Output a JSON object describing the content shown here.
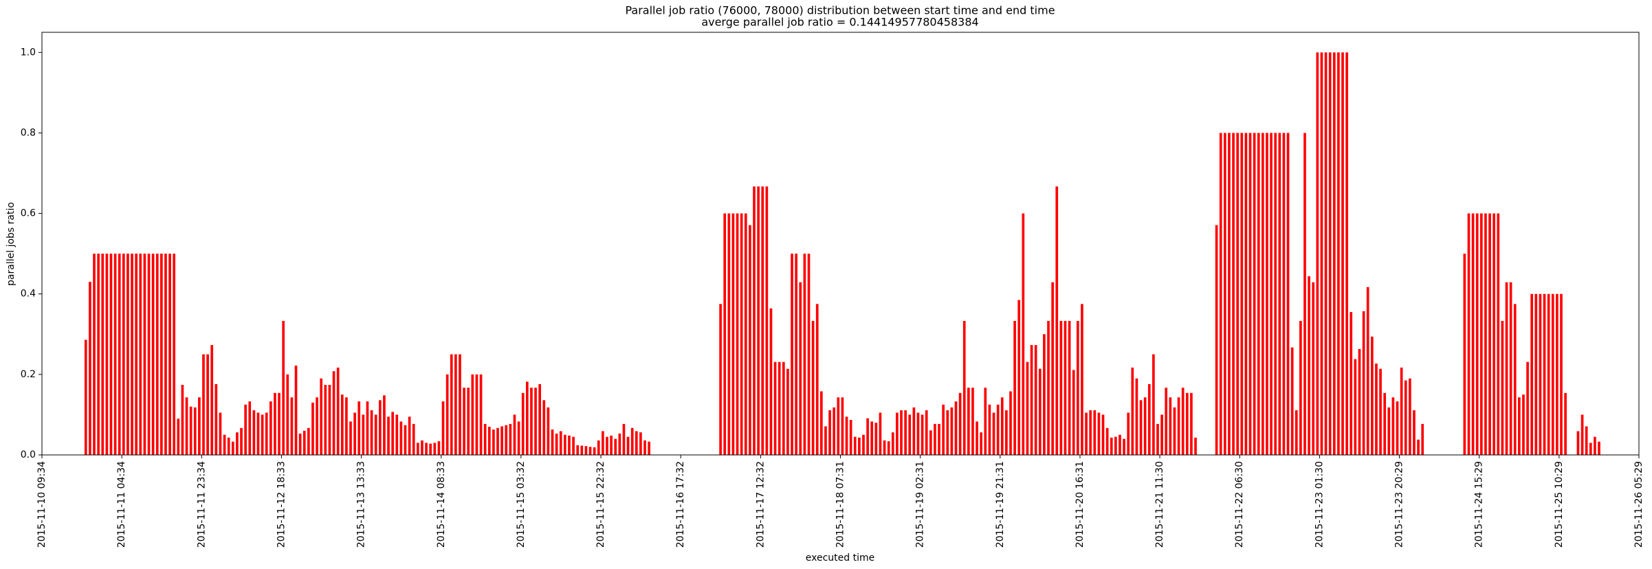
{
  "chart_data": {
    "type": "bar",
    "title": "Parallel job ratio (76000, 78000) distribution between start time and end time",
    "subtitle": "averge parallel job ratio = 0.14414957780458384",
    "x_label": "executed time",
    "y_label": "parallel jobs ratio",
    "color": "#ff0000",
    "xlim": [
      "2015-11-10 09:34",
      "2015-11-26 05:29"
    ],
    "xticks": [
      "2015-11-10 09:34",
      "2015-11-11 04:34",
      "2015-11-11 23:34",
      "2015-11-12 18:33",
      "2015-11-13 13:33",
      "2015-11-14 08:33",
      "2015-11-15 03:32",
      "2015-11-15 22:32",
      "2015-11-16 17:32",
      "2015-11-17 12:32",
      "2015-11-18 07:31",
      "2015-11-19 02:31",
      "2015-11-19 21:31",
      "2015-11-20 16:31",
      "2015-11-21 11:30",
      "2015-11-22 06:30",
      "2015-11-23 01:30",
      "2015-11-23 20:29",
      "2015-11-24 15:29",
      "2015-11-25 10:29",
      "2015-11-26 05:29"
    ],
    "ylim": [
      0,
      1.05
    ],
    "yticks": [
      {
        "value": 0,
        "label": "0.0"
      },
      0.2,
      0.4,
      0.6,
      0.8,
      {
        "value": 1,
        "label": "1.0"
      }
    ],
    "x": [
      "2015-11-10 20:00",
      "2015-11-10 21:00",
      "2015-11-10 22:00",
      "2015-11-10 23:00",
      "2015-11-11 00:00",
      "2015-11-11 01:00",
      "2015-11-11 02:00",
      "2015-11-11 03:00",
      "2015-11-11 04:00",
      "2015-11-11 05:00",
      "2015-11-11 06:00",
      "2015-11-11 07:00",
      "2015-11-11 08:00",
      "2015-11-11 09:00",
      "2015-11-11 10:00",
      "2015-11-11 11:00",
      "2015-11-11 12:00",
      "2015-11-11 13:00",
      "2015-11-11 14:00",
      "2015-11-11 15:00",
      "2015-11-11 16:00",
      "2015-11-11 17:00",
      "2015-11-11 18:00",
      "2015-11-11 19:00",
      "2015-11-11 20:00",
      "2015-11-11 21:00",
      "2015-11-11 22:00",
      "2015-11-11 23:00",
      "2015-11-12 00:00",
      "2015-11-12 01:00",
      "2015-11-12 02:00",
      "2015-11-12 03:00",
      "2015-11-12 04:00",
      "2015-11-12 05:00",
      "2015-11-12 06:00",
      "2015-11-12 07:00",
      "2015-11-12 08:00",
      "2015-11-12 09:00",
      "2015-11-12 10:00",
      "2015-11-12 11:00",
      "2015-11-12 12:00",
      "2015-11-12 13:00",
      "2015-11-12 14:00",
      "2015-11-12 15:00",
      "2015-11-12 16:00",
      "2015-11-12 17:00",
      "2015-11-12 18:00",
      "2015-11-12 19:00",
      "2015-11-12 20:00",
      "2015-11-12 21:00",
      "2015-11-12 22:00",
      "2015-11-12 23:00",
      "2015-11-13 00:00",
      "2015-11-13 01:00",
      "2015-11-13 02:00",
      "2015-11-13 03:00",
      "2015-11-13 04:00",
      "2015-11-13 05:00",
      "2015-11-13 06:00",
      "2015-11-13 07:00",
      "2015-11-13 08:00",
      "2015-11-13 09:00",
      "2015-11-13 10:00",
      "2015-11-13 11:00",
      "2015-11-13 12:00",
      "2015-11-13 13:00",
      "2015-11-13 14:00",
      "2015-11-13 15:00",
      "2015-11-13 16:00",
      "2015-11-13 17:00",
      "2015-11-13 18:00",
      "2015-11-13 19:00",
      "2015-11-13 20:00",
      "2015-11-13 21:00",
      "2015-11-13 22:00",
      "2015-11-13 23:00",
      "2015-11-14 00:00",
      "2015-11-14 01:00",
      "2015-11-14 02:00",
      "2015-11-14 03:00",
      "2015-11-14 04:00",
      "2015-11-14 05:00",
      "2015-11-14 06:00",
      "2015-11-14 07:00",
      "2015-11-14 08:00",
      "2015-11-14 09:00",
      "2015-11-14 10:00",
      "2015-11-14 11:00",
      "2015-11-14 12:00",
      "2015-11-14 13:00",
      "2015-11-14 14:00",
      "2015-11-14 15:00",
      "2015-11-14 16:00",
      "2015-11-14 17:00",
      "2015-11-14 18:00",
      "2015-11-14 19:00",
      "2015-11-14 20:00",
      "2015-11-14 21:00",
      "2015-11-14 22:00",
      "2015-11-14 23:00",
      "2015-11-15 00:00",
      "2015-11-15 01:00",
      "2015-11-15 02:00",
      "2015-11-15 03:00",
      "2015-11-15 04:00",
      "2015-11-15 05:00",
      "2015-11-15 06:00",
      "2015-11-15 07:00",
      "2015-11-15 08:00",
      "2015-11-15 09:00",
      "2015-11-15 10:00",
      "2015-11-15 11:00",
      "2015-11-15 12:00",
      "2015-11-15 13:00",
      "2015-11-15 14:00",
      "2015-11-15 15:00",
      "2015-11-15 16:00",
      "2015-11-15 17:00",
      "2015-11-15 18:00",
      "2015-11-15 19:00",
      "2015-11-15 20:00",
      "2015-11-15 21:00",
      "2015-11-15 22:00",
      "2015-11-15 23:00",
      "2015-11-16 00:00",
      "2015-11-16 01:00",
      "2015-11-16 02:00",
      "2015-11-16 03:00",
      "2015-11-16 04:00",
      "2015-11-16 05:00",
      "2015-11-16 06:00",
      "2015-11-16 07:00",
      "2015-11-16 08:00",
      "2015-11-16 09:00",
      "2015-11-16 10:00",
      "2015-11-17 03:00",
      "2015-11-17 04:00",
      "2015-11-17 05:00",
      "2015-11-17 06:00",
      "2015-11-17 07:00",
      "2015-11-17 08:00",
      "2015-11-17 09:00",
      "2015-11-17 10:00",
      "2015-11-17 11:00",
      "2015-11-17 12:00",
      "2015-11-17 13:00",
      "2015-11-17 14:00",
      "2015-11-17 15:00",
      "2015-11-17 16:00",
      "2015-11-17 17:00",
      "2015-11-17 18:00",
      "2015-11-17 19:00",
      "2015-11-17 20:00",
      "2015-11-17 21:00",
      "2015-11-17 22:00",
      "2015-11-17 23:00",
      "2015-11-18 00:00",
      "2015-11-18 01:00",
      "2015-11-18 02:00",
      "2015-11-18 03:00",
      "2015-11-18 04:00",
      "2015-11-18 05:00",
      "2015-11-18 06:00",
      "2015-11-18 07:00",
      "2015-11-18 08:00",
      "2015-11-18 09:00",
      "2015-11-18 10:00",
      "2015-11-18 11:00",
      "2015-11-18 12:00",
      "2015-11-18 13:00",
      "2015-11-18 14:00",
      "2015-11-18 15:00",
      "2015-11-18 16:00",
      "2015-11-18 17:00",
      "2015-11-18 18:00",
      "2015-11-18 19:00",
      "2015-11-18 20:00",
      "2015-11-18 21:00",
      "2015-11-18 22:00",
      "2015-11-18 23:00",
      "2015-11-19 00:00",
      "2015-11-19 01:00",
      "2015-11-19 02:00",
      "2015-11-19 03:00",
      "2015-11-19 04:00",
      "2015-11-19 05:00",
      "2015-11-19 06:00",
      "2015-11-19 07:00",
      "2015-11-19 08:00",
      "2015-11-19 09:00",
      "2015-11-19 10:00",
      "2015-11-19 11:00",
      "2015-11-19 12:00",
      "2015-11-19 13:00",
      "2015-11-19 14:00",
      "2015-11-19 15:00",
      "2015-11-19 16:00",
      "2015-11-19 17:00",
      "2015-11-19 18:00",
      "2015-11-19 19:00",
      "2015-11-19 20:00",
      "2015-11-19 21:00",
      "2015-11-19 22:00",
      "2015-11-19 23:00",
      "2015-11-20 00:00",
      "2015-11-20 01:00",
      "2015-11-20 02:00",
      "2015-11-20 03:00",
      "2015-11-20 04:00",
      "2015-11-20 05:00",
      "2015-11-20 06:00",
      "2015-11-20 07:00",
      "2015-11-20 08:00",
      "2015-11-20 09:00",
      "2015-11-20 10:00",
      "2015-11-20 11:00",
      "2015-11-20 12:00",
      "2015-11-20 13:00",
      "2015-11-20 14:00",
      "2015-11-20 15:00",
      "2015-11-20 16:00",
      "2015-11-20 17:00",
      "2015-11-20 18:00",
      "2015-11-20 19:00",
      "2015-11-20 20:00",
      "2015-11-20 21:00",
      "2015-11-20 22:00",
      "2015-11-20 23:00",
      "2015-11-21 00:00",
      "2015-11-21 01:00",
      "2015-11-21 02:00",
      "2015-11-21 03:00",
      "2015-11-21 04:00",
      "2015-11-21 05:00",
      "2015-11-21 06:00",
      "2015-11-21 07:00",
      "2015-11-21 08:00",
      "2015-11-21 09:00",
      "2015-11-21 10:00",
      "2015-11-21 11:00",
      "2015-11-21 12:00",
      "2015-11-21 13:00",
      "2015-11-21 14:00",
      "2015-11-21 15:00",
      "2015-11-21 16:00",
      "2015-11-21 17:00",
      "2015-11-21 18:00",
      "2015-11-21 19:00",
      "2015-11-21 20:00",
      "2015-11-22 01:00",
      "2015-11-22 02:00",
      "2015-11-22 03:00",
      "2015-11-22 04:00",
      "2015-11-22 05:00",
      "2015-11-22 06:00",
      "2015-11-22 07:00",
      "2015-11-22 08:00",
      "2015-11-22 09:00",
      "2015-11-22 10:00",
      "2015-11-22 11:00",
      "2015-11-22 12:00",
      "2015-11-22 13:00",
      "2015-11-22 14:00",
      "2015-11-22 15:00",
      "2015-11-22 16:00",
      "2015-11-22 17:00",
      "2015-11-22 18:00",
      "2015-11-22 19:00",
      "2015-11-22 20:00",
      "2015-11-22 21:00",
      "2015-11-22 22:00",
      "2015-11-22 23:00",
      "2015-11-23 00:00",
      "2015-11-23 01:00",
      "2015-11-23 02:00",
      "2015-11-23 03:00",
      "2015-11-23 04:00",
      "2015-11-23 05:00",
      "2015-11-23 06:00",
      "2015-11-23 07:00",
      "2015-11-23 08:00",
      "2015-11-23 09:00",
      "2015-11-23 10:00",
      "2015-11-23 11:00",
      "2015-11-23 12:00",
      "2015-11-23 13:00",
      "2015-11-23 14:00",
      "2015-11-23 15:00",
      "2015-11-23 16:00",
      "2015-11-23 17:00",
      "2015-11-23 18:00",
      "2015-11-23 19:00",
      "2015-11-23 20:00",
      "2015-11-23 21:00",
      "2015-11-23 22:00",
      "2015-11-23 23:00",
      "2015-11-24 00:00",
      "2015-11-24 01:00",
      "2015-11-24 02:00",
      "2015-11-24 12:00",
      "2015-11-24 13:00",
      "2015-11-24 14:00",
      "2015-11-24 15:00",
      "2015-11-24 16:00",
      "2015-11-24 17:00",
      "2015-11-24 18:00",
      "2015-11-24 19:00",
      "2015-11-24 20:00",
      "2015-11-24 21:00",
      "2015-11-24 22:00",
      "2015-11-24 23:00",
      "2015-11-25 00:00",
      "2015-11-25 01:00",
      "2015-11-25 02:00",
      "2015-11-25 03:00",
      "2015-11-25 04:00",
      "2015-11-25 05:00",
      "2015-11-25 06:00",
      "2015-11-25 07:00",
      "2015-11-25 08:00",
      "2015-11-25 09:00",
      "2015-11-25 10:00",
      "2015-11-25 11:00",
      "2015-11-25 12:00",
      "2015-11-25 15:00",
      "2015-11-25 16:00",
      "2015-11-25 17:00",
      "2015-11-25 18:00",
      "2015-11-25 19:00",
      "2015-11-25 20:00"
    ],
    "values": [
      0.286,
      0.43,
      0.5,
      0.5,
      0.5,
      0.5,
      0.5,
      0.5,
      0.5,
      0.5,
      0.5,
      0.5,
      0.5,
      0.5,
      0.5,
      0.5,
      0.5,
      0.5,
      0.5,
      0.5,
      0.5,
      0.5,
      0.09,
      0.174,
      0.143,
      0.12,
      0.118,
      0.143,
      0.25,
      0.25,
      0.273,
      0.176,
      0.105,
      0.05,
      0.043,
      0.033,
      0.056,
      0.067,
      0.125,
      0.133,
      0.111,
      0.105,
      0.1,
      0.105,
      0.133,
      0.154,
      0.154,
      0.333,
      0.2,
      0.143,
      0.222,
      0.053,
      0.06,
      0.067,
      0.13,
      0.143,
      0.19,
      0.174,
      0.174,
      0.208,
      0.217,
      0.15,
      0.143,
      0.083,
      0.105,
      0.133,
      0.1,
      0.133,
      0.111,
      0.1,
      0.136,
      0.148,
      0.095,
      0.107,
      0.1,
      0.083,
      0.074,
      0.095,
      0.077,
      0.03,
      0.036,
      0.03,
      0.028,
      0.03,
      0.034,
      0.133,
      0.2,
      0.25,
      0.25,
      0.25,
      0.167,
      0.167,
      0.2,
      0.2,
      0.2,
      0.077,
      0.07,
      0.063,
      0.067,
      0.071,
      0.074,
      0.077,
      0.1,
      0.083,
      0.154,
      0.182,
      0.167,
      0.167,
      0.176,
      0.136,
      0.118,
      0.063,
      0.053,
      0.059,
      0.05,
      0.048,
      0.045,
      0.024,
      0.023,
      0.022,
      0.02,
      0.019,
      0.036,
      0.059,
      0.045,
      0.048,
      0.04,
      0.053,
      0.077,
      0.045,
      0.067,
      0.059,
      0.056,
      0.036,
      0.033,
      0.375,
      0.6,
      0.6,
      0.6,
      0.6,
      0.6,
      0.6,
      0.571,
      0.667,
      0.667,
      0.667,
      0.667,
      0.364,
      0.231,
      0.231,
      0.231,
      0.214,
      0.5,
      0.5,
      0.429,
      0.5,
      0.5,
      0.333,
      0.375,
      0.158,
      0.071,
      0.111,
      0.118,
      0.143,
      0.143,
      0.095,
      0.087,
      0.045,
      0.043,
      0.05,
      0.091,
      0.083,
      0.08,
      0.105,
      0.036,
      0.034,
      0.056,
      0.105,
      0.111,
      0.111,
      0.1,
      0.118,
      0.105,
      0.1,
      0.111,
      0.061,
      0.077,
      0.077,
      0.125,
      0.111,
      0.118,
      0.133,
      0.154,
      0.333,
      0.167,
      0.167,
      0.083,
      0.056,
      0.167,
      0.125,
      0.105,
      0.125,
      0.143,
      0.111,
      0.158,
      0.333,
      0.385,
      0.6,
      0.231,
      0.273,
      0.273,
      0.214,
      0.3,
      0.333,
      0.429,
      0.667,
      0.333,
      0.333,
      0.333,
      0.211,
      0.333,
      0.375,
      0.105,
      0.111,
      0.111,
      0.105,
      0.1,
      0.067,
      0.043,
      0.045,
      0.05,
      0.04,
      0.105,
      0.217,
      0.19,
      0.136,
      0.143,
      0.176,
      0.25,
      0.077,
      0.1,
      0.167,
      0.143,
      0.118,
      0.143,
      0.167,
      0.154,
      0.154,
      0.043,
      0.571,
      0.8,
      0.8,
      0.8,
      0.8,
      0.8,
      0.8,
      0.8,
      0.8,
      0.8,
      0.8,
      0.8,
      0.8,
      0.8,
      0.8,
      0.8,
      0.8,
      0.8,
      0.267,
      0.111,
      0.333,
      0.8,
      0.444,
      0.429,
      1,
      1,
      1,
      1,
      1,
      1,
      1,
      1,
      0.355,
      0.238,
      0.263,
      0.357,
      0.417,
      0.294,
      0.227,
      0.214,
      0.154,
      0.118,
      0.143,
      0.133,
      0.217,
      0.185,
      0.19,
      0.111,
      0.038,
      0.077,
      0.5,
      0.6,
      0.6,
      0.6,
      0.6,
      0.6,
      0.6,
      0.6,
      0.6,
      0.333,
      0.429,
      0.429,
      0.375,
      0.143,
      0.15,
      0.231,
      0.4,
      0.4,
      0.4,
      0.4,
      0.4,
      0.4,
      0.4,
      0.4,
      0.154,
      0.059,
      0.1,
      0.071,
      0.03,
      0.045,
      0.033
    ]
  }
}
